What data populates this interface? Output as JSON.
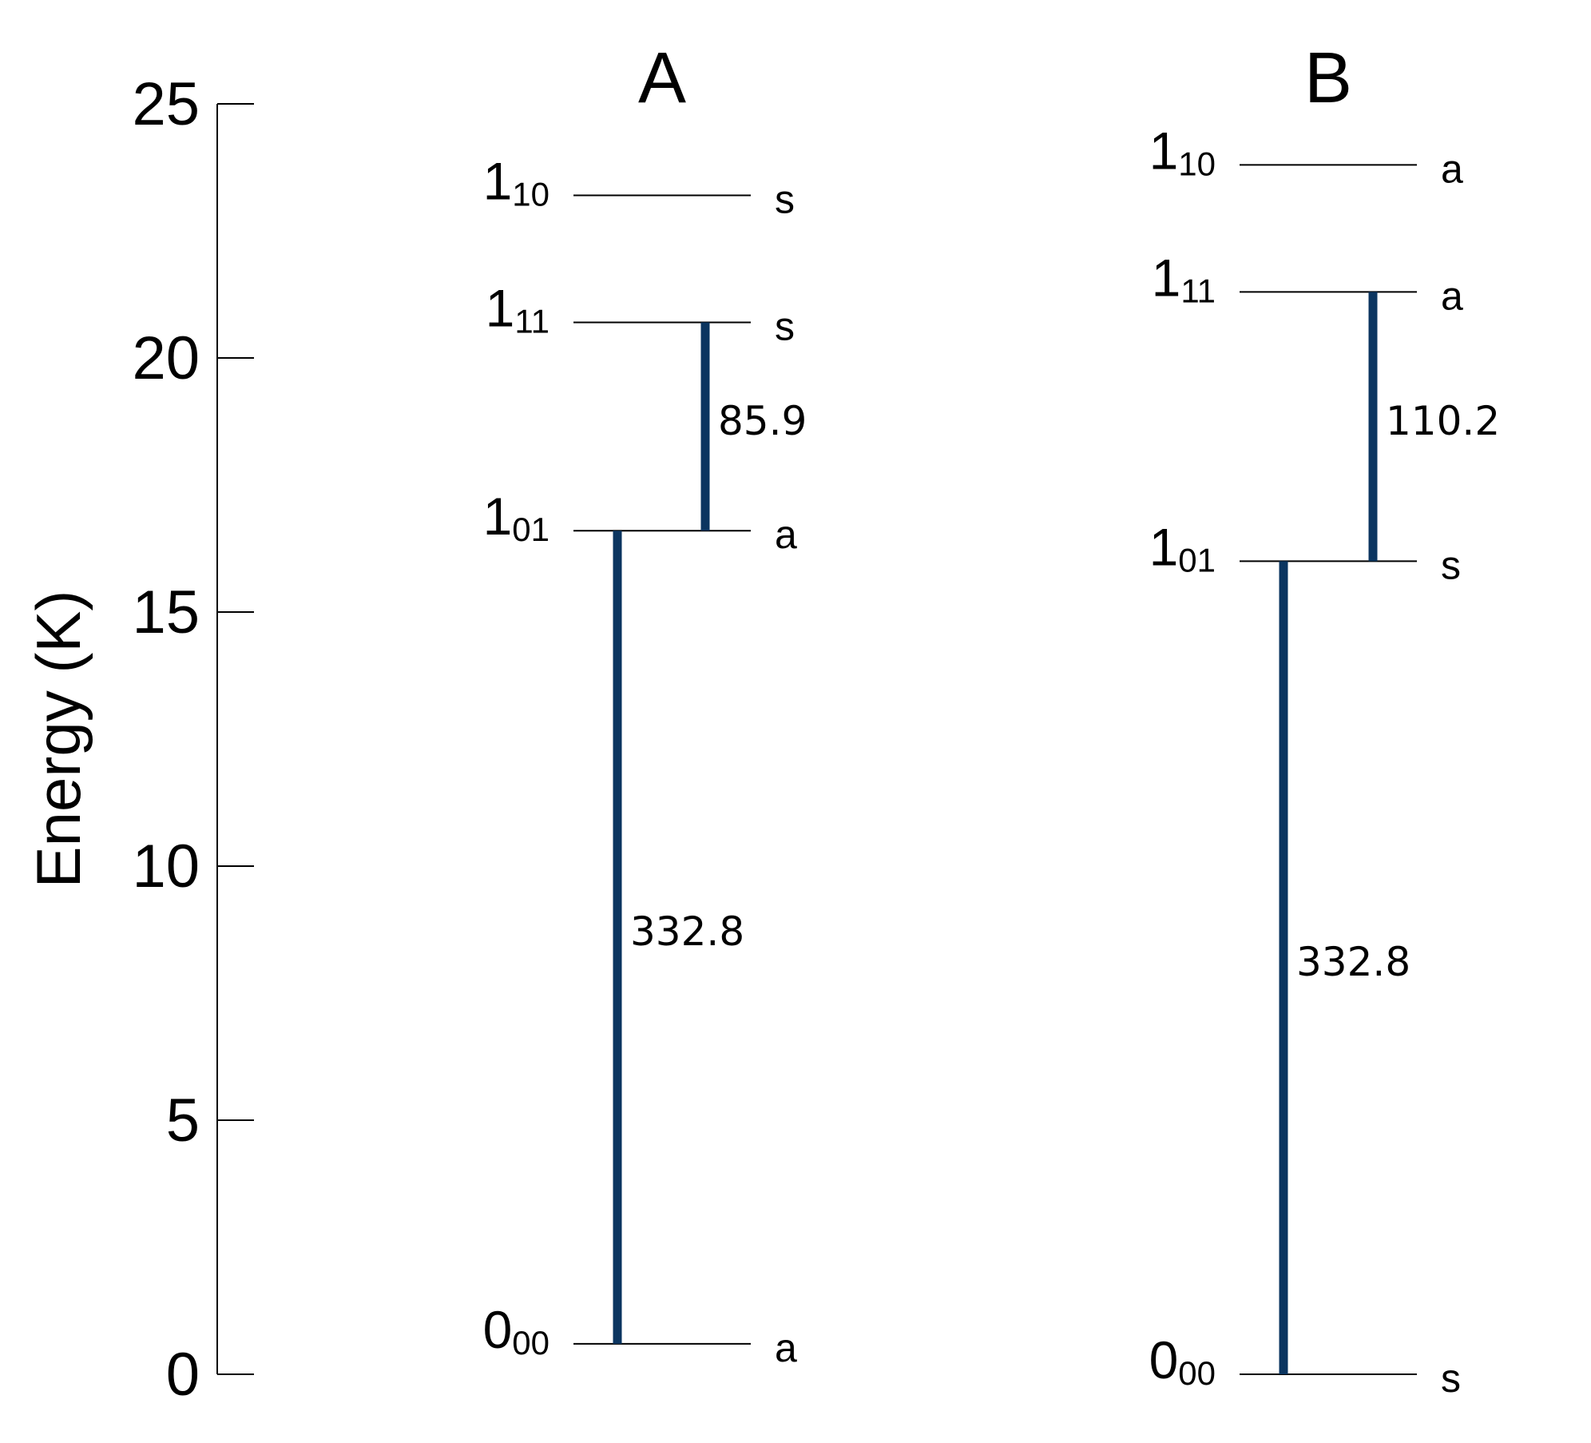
{
  "axis": {
    "label": "Energy (K)",
    "min": 0,
    "max": 25,
    "ticks": [
      "0",
      "5",
      "10",
      "15",
      "20",
      "25"
    ]
  },
  "colors": {
    "transition": "#0b3560",
    "line": "#000000"
  },
  "panels": [
    {
      "title": "A",
      "levels": [
        {
          "main": "0",
          "sub": "00",
          "sym": "a",
          "energy": 0.6
        },
        {
          "main": "1",
          "sub": "01",
          "sym": "a",
          "energy": 16.6
        },
        {
          "main": "1",
          "sub": "11",
          "sym": "s",
          "energy": 20.7
        },
        {
          "main": "1",
          "sub": "10",
          "sym": "s",
          "energy": 23.2
        }
      ],
      "transitions": [
        {
          "from": 0,
          "to": 1,
          "label": "332.8"
        },
        {
          "from": 1,
          "to": 2,
          "label": "85.9"
        }
      ]
    },
    {
      "title": "B",
      "levels": [
        {
          "main": "0",
          "sub": "00",
          "sym": "s",
          "energy": 0.0
        },
        {
          "main": "1",
          "sub": "01",
          "sym": "s",
          "energy": 16.0
        },
        {
          "main": "1",
          "sub": "11",
          "sym": "a",
          "energy": 21.3
        },
        {
          "main": "1",
          "sub": "10",
          "sym": "a",
          "energy": 23.8
        }
      ],
      "transitions": [
        {
          "from": 0,
          "to": 1,
          "label": "332.8"
        },
        {
          "from": 1,
          "to": 2,
          "label": "110.2"
        }
      ]
    }
  ]
}
